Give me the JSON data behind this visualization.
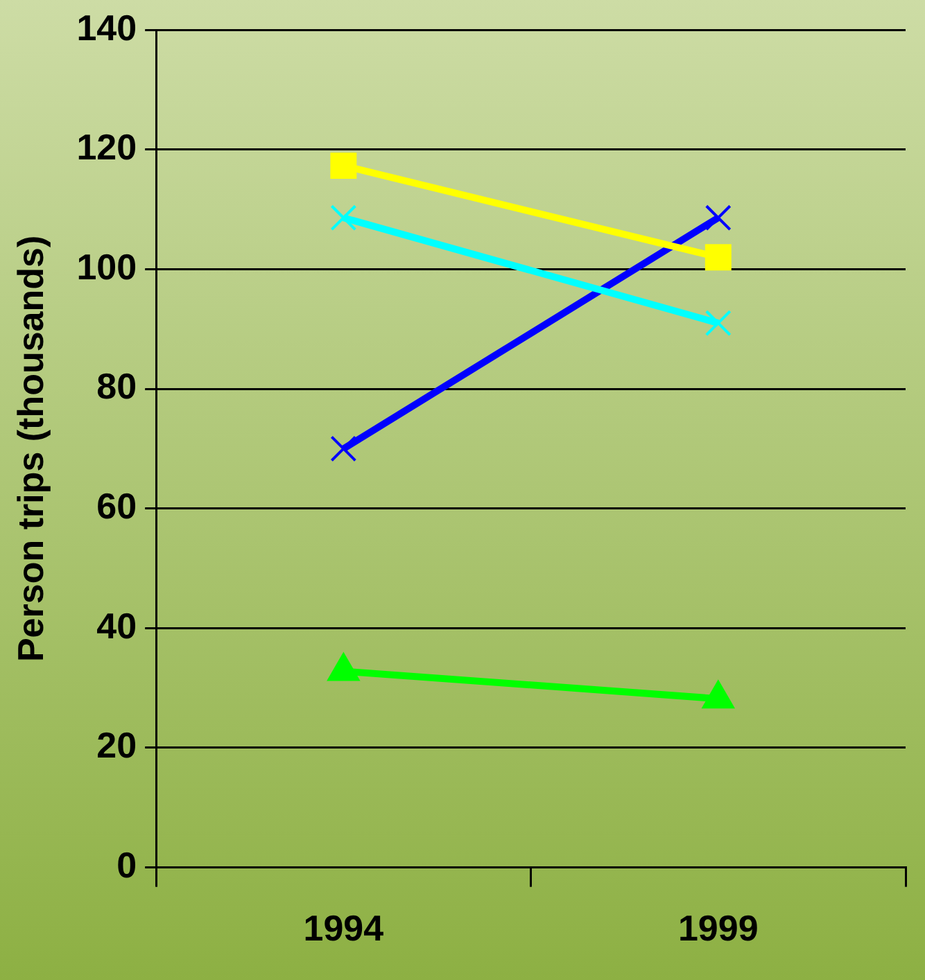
{
  "chart_data": {
    "type": "line",
    "ylabel": "Person trips (thousands)",
    "categories": [
      "1994",
      "1999"
    ],
    "ylim": [
      0,
      140
    ],
    "yticks": [
      0,
      20,
      40,
      60,
      80,
      100,
      120,
      140
    ],
    "grid": "y",
    "legend": false,
    "line_style": "solid",
    "series": [
      {
        "color": "#ffff00",
        "marker": "square",
        "values": [
          117.3,
          102
        ]
      },
      {
        "color": "#00ffff",
        "marker": "cross",
        "values": [
          108.6,
          91
        ]
      },
      {
        "color": "#0000ff",
        "marker": "cross",
        "values": [
          70,
          108.6
        ]
      },
      {
        "color": "#00ff00",
        "marker": "triangle",
        "values": [
          32.8,
          28.2
        ]
      }
    ]
  }
}
